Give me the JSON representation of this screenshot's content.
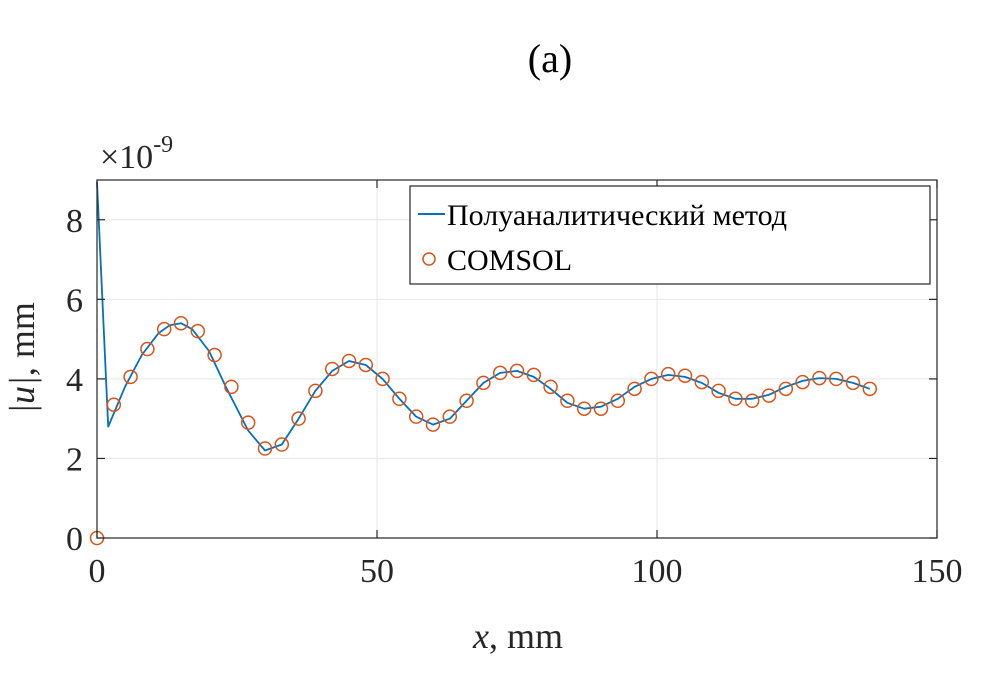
{
  "panel_label": "(a)",
  "chart_data": {
    "type": "line",
    "title": "(a)",
    "xlabel_var": "x",
    "xlabel_unit": ", mm",
    "ylabel_var": "|u|",
    "ylabel_unit": ", mm",
    "y_multiplier": "×10",
    "y_exponent": "-9",
    "xlim": [
      0,
      150
    ],
    "ylim": [
      0,
      9
    ],
    "xticks": [
      0,
      50,
      100,
      150
    ],
    "yticks": [
      0,
      2,
      4,
      6,
      8
    ],
    "grid": true,
    "legend_position": "top-right",
    "colors": {
      "line": "#0072BD",
      "markers": "#D95319",
      "axes": "#262626",
      "grid": "#e6e6e6"
    },
    "series": [
      {
        "name": "Полуаналитический метод",
        "style": "line",
        "x": [
          0,
          2,
          5,
          8,
          11,
          13,
          15,
          17,
          20,
          23,
          27,
          30,
          33,
          36,
          39,
          42,
          45,
          48,
          51,
          54,
          57,
          60,
          63,
          66,
          69,
          72,
          75,
          78,
          81,
          84,
          87,
          90,
          93,
          96,
          99,
          102,
          105,
          108,
          111,
          114,
          117,
          120,
          123,
          126,
          129,
          132,
          135,
          138
        ],
        "y": [
          8.95,
          2.8,
          3.8,
          4.6,
          5.15,
          5.35,
          5.4,
          5.25,
          4.7,
          3.8,
          2.7,
          2.2,
          2.35,
          3.0,
          3.7,
          4.2,
          4.45,
          4.35,
          4.0,
          3.5,
          3.05,
          2.85,
          3.0,
          3.45,
          3.9,
          4.15,
          4.2,
          4.05,
          3.75,
          3.4,
          3.25,
          3.3,
          3.5,
          3.8,
          4.0,
          4.1,
          4.05,
          3.9,
          3.65,
          3.5,
          3.5,
          3.6,
          3.8,
          3.95,
          4.02,
          4.0,
          3.9,
          3.75
        ]
      },
      {
        "name": "COMSOL",
        "style": "markers",
        "x": [
          0,
          3,
          6,
          9,
          12,
          15,
          18,
          21,
          24,
          27,
          30,
          33,
          36,
          39,
          42,
          45,
          48,
          51,
          54,
          57,
          60,
          63,
          66,
          69,
          72,
          75,
          78,
          81,
          84,
          87,
          90,
          93,
          96,
          99,
          102,
          105,
          108,
          111,
          114,
          117,
          120,
          123,
          126,
          129,
          132,
          135,
          138
        ],
        "y": [
          0.0,
          3.35,
          4.05,
          4.75,
          5.25,
          5.4,
          5.2,
          4.6,
          3.8,
          2.9,
          2.25,
          2.35,
          3.0,
          3.7,
          4.25,
          4.45,
          4.35,
          4.0,
          3.5,
          3.05,
          2.85,
          3.05,
          3.45,
          3.9,
          4.15,
          4.2,
          4.1,
          3.8,
          3.45,
          3.25,
          3.25,
          3.45,
          3.75,
          4.0,
          4.12,
          4.08,
          3.92,
          3.7,
          3.5,
          3.45,
          3.58,
          3.75,
          3.92,
          4.02,
          4.0,
          3.9,
          3.75
        ]
      }
    ]
  }
}
